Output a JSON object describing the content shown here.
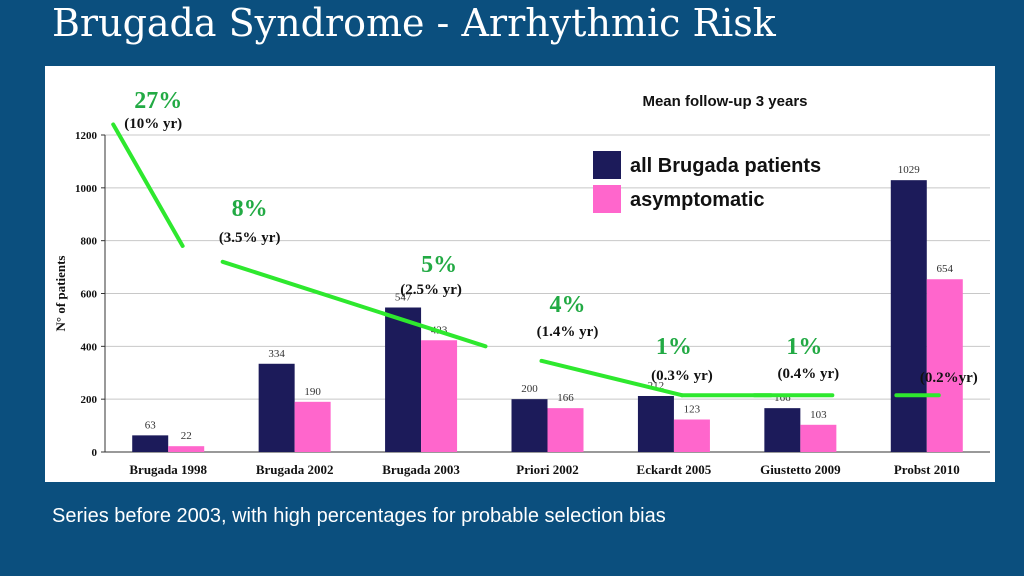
{
  "slide": {
    "title": "Brugada Syndrome - Arrhythmic Risk",
    "caption": "Series before 2003, with high percentages for probable selection bias"
  },
  "chart_data": {
    "type": "bar",
    "title": "Mean follow-up 3 years",
    "ylabel": "N° of patients",
    "xlabel": "",
    "ylim": [
      0,
      1200
    ],
    "yticks": [
      0,
      200,
      400,
      600,
      800,
      1000,
      1200
    ],
    "grid": true,
    "legend_position": "top-right",
    "categories": [
      "Brugada 1998",
      "Brugada 2002",
      "Brugada 2003",
      "Priori 2002",
      "Eckardt 2005",
      "Giustetto 2009",
      "Probst 2010"
    ],
    "series": [
      {
        "name": "all Brugada patients",
        "color": "#1c1b5a",
        "values": [
          63,
          334,
          547,
          200,
          212,
          166,
          1029
        ],
        "labels": [
          "63",
          "334",
          "547",
          "200",
          "212",
          "166",
          "1029"
        ]
      },
      {
        "name": "asymptomatic",
        "color": "#ff66cc",
        "values": [
          22,
          190,
          423,
          166,
          123,
          103,
          654
        ],
        "labels": [
          "22",
          "190",
          "423",
          "166",
          "123",
          "103",
          "654"
        ]
      }
    ],
    "annotations": [
      {
        "category": "Brugada 1998",
        "percent": "27%",
        "rate": "(10% yr)"
      },
      {
        "category": "Brugada 2002",
        "percent": "8%",
        "rate": "(3.5% yr)"
      },
      {
        "category": "Brugada 2003",
        "percent": "5%",
        "rate": "(2.5% yr)"
      },
      {
        "category": "Priori 2002",
        "percent": "4%",
        "rate": "(1.4% yr)"
      },
      {
        "category": "Eckardt 2005",
        "percent": "1%",
        "rate": "(0.3% yr)"
      },
      {
        "category": "Giustetto 2009",
        "percent": "1%",
        "rate": "(0.4% yr)"
      },
      {
        "category": "Probst 2010",
        "percent": "",
        "rate": "(0.2%yr)"
      }
    ],
    "trend_color": "#2ee82e",
    "percent_color": "#22aa44"
  }
}
